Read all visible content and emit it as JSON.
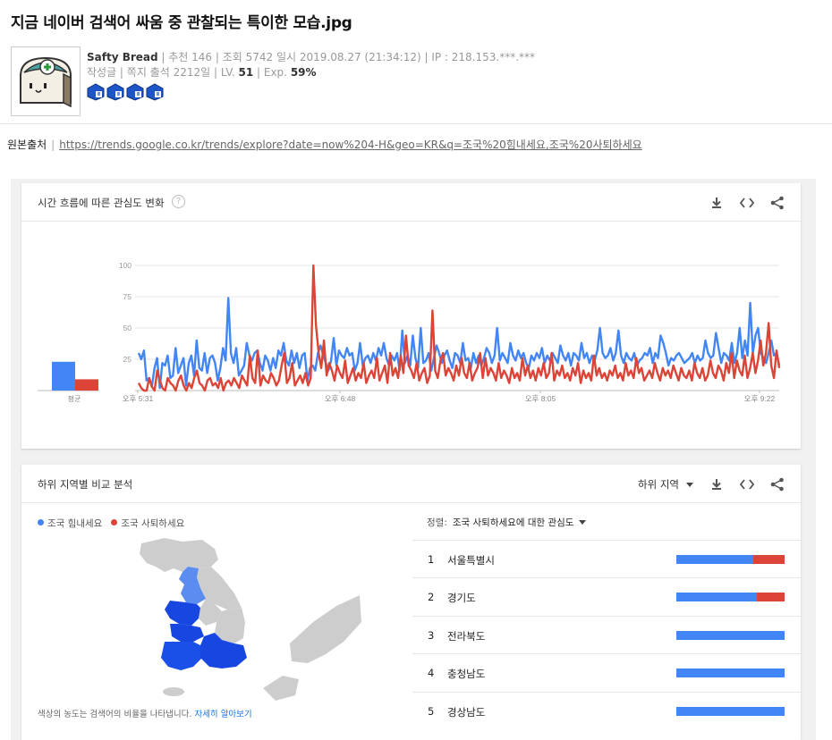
{
  "post": {
    "title": "지금 네이버 검색어 싸움 중 관찰되는 특이한 모습.jpg",
    "author": "Safty Bread",
    "meta_line1": " | 추천 146 | 조회 5742 일시 2019.08.27 (21:34:12) | IP : 218.153.***.***",
    "meta_line2_a": "작성글 | 쪽지 출석 2212일 |  LV. ",
    "level": "51",
    "meta_line2_b": "  | Exp. ",
    "exp": "59%",
    "source_label": "원본출처",
    "source_url": "https://trends.google.co.kr/trends/explore?date=now%204-H&geo=KR&q=조국%20힘내세요,조국%20사퇴하세요"
  },
  "trends": {
    "interest_card": {
      "title": "시간 흐름에 따른 관심도 변화",
      "help": "?",
      "avg_label": "평균"
    },
    "region_card": {
      "title": "하위 지역별 비교 분석",
      "region_select": "하위 지역",
      "sort_label": "정렬:",
      "sort_value": "조국 사퇴하세요에 대한 관심도",
      "map_note": "색상의 농도는 검색어의 비율을 나타냅니다. ",
      "map_link": "자세히 알아보기",
      "terms": [
        "조국 힘내세요",
        "조국 사퇴하세요"
      ],
      "regions": [
        {
          "rank": "1",
          "name": "서울특별시",
          "share_blue": 0.71
        },
        {
          "rank": "2",
          "name": "경기도",
          "share_blue": 0.74
        },
        {
          "rank": "3",
          "name": "전라북도",
          "share_blue": 1.0
        },
        {
          "rank": "4",
          "name": "충청남도",
          "share_blue": 1.0
        },
        {
          "rank": "5",
          "name": "경상남도",
          "share_blue": 1.0
        }
      ]
    },
    "colors": {
      "blue": "#4285f4",
      "red": "#db4437"
    }
  },
  "chart_data": {
    "type": "line",
    "title": "",
    "xlabel": "",
    "ylabel": "",
    "ylim": [
      0,
      100
    ],
    "yticks": [
      "100",
      "75",
      "50",
      "25"
    ],
    "xticks": [
      "오후 5:31",
      "오후 6:48",
      "오후 8:05",
      "오후 9:22"
    ],
    "averages": [
      {
        "name": "조국 힘내세요",
        "value": 23
      },
      {
        "name": "조국 사퇴하세요",
        "value": 9
      }
    ],
    "series": [
      {
        "name": "조국 힘내세요",
        "color": "#4285f4",
        "values": [
          30,
          25,
          32,
          8,
          10,
          3,
          18,
          26,
          2,
          22,
          20,
          28,
          10,
          12,
          34,
          14,
          20,
          26,
          4,
          22,
          28,
          12,
          40,
          18,
          16,
          30,
          14,
          26,
          28,
          22,
          8,
          18,
          34,
          24,
          74,
          30,
          22,
          34,
          12,
          16,
          20,
          38,
          28,
          24,
          30,
          32,
          22,
          16,
          28,
          24,
          16,
          26,
          18,
          32,
          28,
          38,
          24,
          20,
          32,
          22,
          30,
          18,
          28,
          30,
          8,
          18,
          20,
          16,
          30,
          36,
          28,
          22,
          16,
          24,
          42,
          20,
          32,
          28,
          26,
          34,
          28,
          30,
          16,
          22,
          38,
          20,
          26,
          28,
          22,
          30,
          24,
          34,
          28,
          38,
          26,
          20,
          28,
          24,
          30,
          16,
          48,
          22,
          28,
          20,
          44,
          26,
          18,
          50,
          22,
          24,
          30,
          16,
          26,
          36,
          30,
          22,
          28,
          32,
          24,
          18,
          30,
          28,
          22,
          38,
          24,
          26,
          18,
          30,
          22,
          28,
          20,
          26,
          34,
          30,
          22,
          28,
          50,
          24,
          30,
          26,
          22,
          38,
          28,
          24,
          32,
          26,
          30,
          22,
          18,
          28,
          24,
          30,
          26,
          34,
          22,
          28,
          24,
          30,
          26,
          22,
          36,
          28,
          24,
          30,
          20,
          30,
          28,
          24,
          38,
          26,
          30,
          22,
          28,
          24,
          32,
          50,
          30,
          26,
          28,
          34,
          24,
          30,
          48,
          28,
          22,
          30,
          26,
          24,
          30,
          20,
          24,
          26,
          30,
          28,
          34,
          22,
          30,
          26,
          44,
          38,
          30,
          20,
          26,
          24,
          28,
          30,
          26,
          22,
          24,
          26,
          30,
          22,
          28,
          24,
          26,
          40,
          30,
          26,
          28,
          46,
          34,
          22,
          30,
          28,
          24,
          38,
          22,
          30,
          50,
          26,
          40,
          28,
          70,
          30,
          44,
          50,
          30,
          26,
          22,
          30,
          40,
          28,
          30,
          20
        ]
      },
      {
        "name": "조국 사퇴하세요",
        "color": "#db4437",
        "values": [
          6,
          2,
          0,
          0,
          10,
          3,
          0,
          16,
          8,
          2,
          0,
          10,
          6,
          4,
          0,
          8,
          12,
          4,
          0,
          6,
          2,
          10,
          16,
          6,
          4,
          0,
          8,
          10,
          4,
          6,
          2,
          10,
          0,
          6,
          8,
          4,
          10,
          6,
          2,
          12,
          8,
          4,
          28,
          10,
          6,
          32,
          4,
          12,
          8,
          6,
          14,
          10,
          4,
          8,
          20,
          30,
          6,
          10,
          22,
          4,
          8,
          12,
          6,
          14,
          4,
          10,
          100,
          52,
          30,
          18,
          40,
          12,
          22,
          16,
          8,
          20,
          14,
          10,
          24,
          6,
          12,
          18,
          8,
          14,
          10,
          22,
          6,
          12,
          16,
          10,
          26,
          8,
          14,
          20,
          6,
          30,
          12,
          18,
          10,
          28,
          14,
          44,
          20,
          16,
          10,
          22,
          8,
          14,
          18,
          6,
          12,
          64,
          16,
          10,
          24,
          30,
          12,
          18,
          14,
          8,
          20,
          12,
          26,
          14,
          10,
          22,
          8,
          14,
          18,
          30,
          10,
          26,
          12,
          18,
          14,
          8,
          22,
          10,
          16,
          12,
          6,
          18,
          10,
          14,
          8,
          26,
          12,
          20,
          10,
          16,
          8,
          18,
          12,
          22,
          10,
          14,
          30,
          8,
          16,
          12,
          20,
          10,
          14,
          8,
          18,
          12,
          22,
          6,
          16,
          10,
          14,
          8,
          28,
          12,
          18,
          10,
          14,
          8,
          16,
          12,
          20,
          10,
          14,
          8,
          22,
          12,
          16,
          10,
          26,
          14,
          18,
          8,
          12,
          16,
          10,
          22,
          14,
          8,
          18,
          12,
          16,
          10,
          20,
          14,
          8,
          18,
          12,
          10,
          16,
          8,
          22,
          14,
          10,
          18,
          8,
          12,
          24,
          14,
          10,
          20,
          16,
          8,
          22,
          14,
          30,
          10,
          24,
          16,
          12,
          28,
          10,
          18,
          30,
          14,
          24,
          40,
          20,
          30,
          54,
          20,
          10,
          32,
          18
        ]
      }
    ]
  },
  "map_data": {
    "highlighted_regions": [
      "서울특별시",
      "경기도",
      "전라북도",
      "충청남도",
      "경상남도"
    ]
  }
}
